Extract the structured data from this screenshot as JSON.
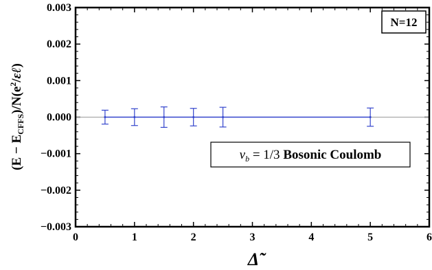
{
  "chart_data": {
    "type": "scatter",
    "xlabel": "Δ̃",
    "ylabel": "(E − E_CFFS)/N(e²/εℓ)",
    "xlim": [
      0,
      6
    ],
    "ylim": [
      -0.003,
      0.003
    ],
    "xticks": [
      "0",
      "1",
      "2",
      "3",
      "4",
      "5",
      "6"
    ],
    "yticks": [
      "0.003",
      "0.002",
      "0.001",
      "0.000",
      "−0.001",
      "−0.002",
      "−0.003"
    ],
    "x_tick_values": [
      0,
      1,
      2,
      3,
      4,
      5,
      6
    ],
    "y_tick_values": [
      0.003,
      0.002,
      0.001,
      0.0,
      -0.001,
      -0.002,
      -0.003
    ],
    "series": [
      {
        "x": [
          0.5,
          1.0,
          1.5,
          2.0,
          2.5,
          5.0
        ],
        "y": [
          0.0,
          0.0,
          0.0,
          0.0,
          0.0,
          0.0
        ],
        "err": [
          0.00019,
          0.00023,
          0.00028,
          0.00024,
          0.00027,
          0.00025
        ]
      }
    ],
    "legend_label": "N=12",
    "annotation": "ν_b = 1/3 Bosonic Coulomb",
    "grid": false,
    "colors": {
      "series": "#3344cc",
      "zero_line": "#999999",
      "axes": "#000000"
    }
  }
}
